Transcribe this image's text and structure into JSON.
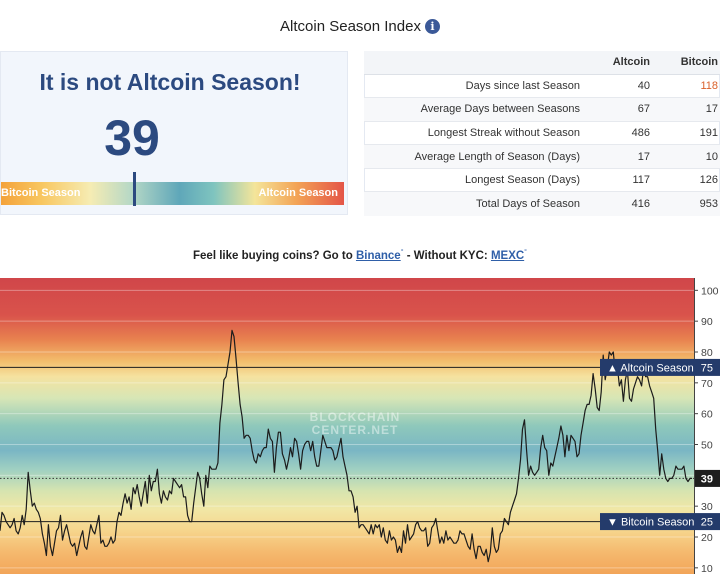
{
  "page": {
    "title": "Altcoin Season Index",
    "info_icon": "i"
  },
  "status": {
    "headline": "It is not Altcoin Season!",
    "index_value": "39",
    "gauge_left_label": "Bitcoin Season",
    "gauge_right_label": "Altcoin Season",
    "gauge_level": 39
  },
  "stats": {
    "columns": [
      "",
      "Altcoin",
      "Bitcoin"
    ],
    "rows": [
      {
        "label": "Days since last Season",
        "altcoin": "40",
        "bitcoin": "118",
        "bitcoin_highlight": true
      },
      {
        "label": "Average Days between Seasons",
        "altcoin": "67",
        "bitcoin": "17"
      },
      {
        "label": "Longest Streak without Season",
        "altcoin": "486",
        "bitcoin": "191"
      },
      {
        "label": "Average Length of Season (Days)",
        "altcoin": "17",
        "bitcoin": "10"
      },
      {
        "label": "Longest Season (Days)",
        "altcoin": "117",
        "bitcoin": "126"
      },
      {
        "label": "Total Days of Season",
        "altcoin": "416",
        "bitcoin": "953"
      }
    ],
    "highlight_color": "#d9602b"
  },
  "promo": {
    "prefix": "Feel like buying coins? Go to",
    "binance": "Binance",
    "middle": "- Without KYC:",
    "mexc": "MEXC",
    "mark": "°"
  },
  "chart_data": {
    "type": "line",
    "title": "",
    "xlabel": "",
    "ylabel": "",
    "ylim": [
      8,
      104
    ],
    "y_ticks": [
      10,
      20,
      30,
      40,
      50,
      60,
      70,
      80,
      90,
      100
    ],
    "watermark": [
      "BLOCKCHAIN",
      "CENTER.NET"
    ],
    "current_value": 39,
    "thresholds": [
      {
        "label": "▲ Altcoin Season",
        "value": 75
      },
      {
        "label": "▼ Bitcoin Season",
        "value": 25
      }
    ],
    "line_color": "#1c1c1c",
    "series": [
      {
        "values": [
          22,
          28,
          27,
          25,
          24,
          23,
          24,
          26,
          22,
          21,
          23,
          27,
          24,
          29,
          41,
          35,
          30,
          31,
          29,
          28,
          26,
          21,
          18,
          14,
          24,
          17,
          14,
          18,
          22,
          23,
          27,
          19,
          22,
          24,
          21,
          18,
          17,
          18,
          14,
          17,
          20,
          22,
          17,
          16,
          20,
          24,
          22,
          21,
          24,
          27,
          18,
          19,
          17,
          17,
          18,
          20,
          18,
          19,
          25,
          28,
          27,
          31,
          34,
          31,
          33,
          29,
          36,
          34,
          37,
          33,
          30,
          34,
          38,
          31,
          40,
          35,
          38,
          38,
          42,
          34,
          31,
          35,
          33,
          32,
          35,
          34,
          39,
          38,
          37,
          36,
          37,
          33,
          33,
          27,
          25,
          25,
          31,
          36,
          41,
          39,
          34,
          30,
          40,
          36,
          43,
          42,
          42,
          42,
          44,
          57,
          63,
          71,
          72,
          76,
          80,
          87,
          85,
          78,
          70,
          63,
          59,
          52,
          53,
          53,
          52,
          48,
          45,
          44,
          47,
          46,
          48,
          49,
          49,
          55,
          52,
          51,
          41,
          49,
          54,
          54,
          47,
          45,
          42,
          45,
          49,
          46,
          52,
          51,
          47,
          42,
          48,
          50,
          51,
          51,
          48,
          51,
          46,
          43,
          43,
          48,
          53,
          51,
          49,
          49,
          49,
          48,
          45,
          46,
          49,
          52,
          46,
          43,
          40,
          35,
          35,
          33,
          28,
          30,
          23,
          24,
          24,
          23,
          22,
          21,
          24,
          21,
          24,
          23,
          24,
          20,
          23,
          19,
          18,
          22,
          19,
          20,
          19,
          15,
          17,
          15,
          22,
          18,
          24,
          19,
          20,
          21,
          24,
          25,
          23,
          22,
          22,
          23,
          17,
          18,
          23,
          24,
          26,
          22,
          18,
          20,
          18,
          22,
          19,
          20,
          19,
          18,
          18,
          19,
          22,
          21,
          21,
          19,
          17,
          16,
          21,
          16,
          13,
          17,
          17,
          15,
          14,
          16,
          12,
          15,
          23,
          17,
          15,
          16,
          21,
          22,
          26,
          25,
          24,
          28,
          30,
          32,
          34,
          39,
          45,
          55,
          58,
          48,
          40,
          43,
          41,
          40,
          41,
          42,
          49,
          53,
          49,
          48,
          40,
          44,
          43,
          46,
          49,
          52,
          56,
          53,
          46,
          53,
          48,
          53,
          52,
          51,
          46,
          47,
          53,
          57,
          61,
          63,
          63,
          66,
          73,
          68,
          62,
          61,
          67,
          79,
          71,
          75,
          80,
          79,
          80,
          73,
          75,
          69,
          71,
          64,
          71,
          74,
          65,
          64,
          68,
          70,
          72,
          71,
          69,
          75,
          72,
          72,
          69,
          67,
          65,
          55,
          48,
          40,
          47,
          42,
          39,
          38,
          39,
          39,
          40,
          43,
          42,
          42,
          42,
          43,
          39,
          38,
          39,
          39
        ]
      }
    ]
  },
  "colors": {
    "brand": "#2c4a80",
    "accent": "#3b5998",
    "label_box": "#243b6b"
  }
}
